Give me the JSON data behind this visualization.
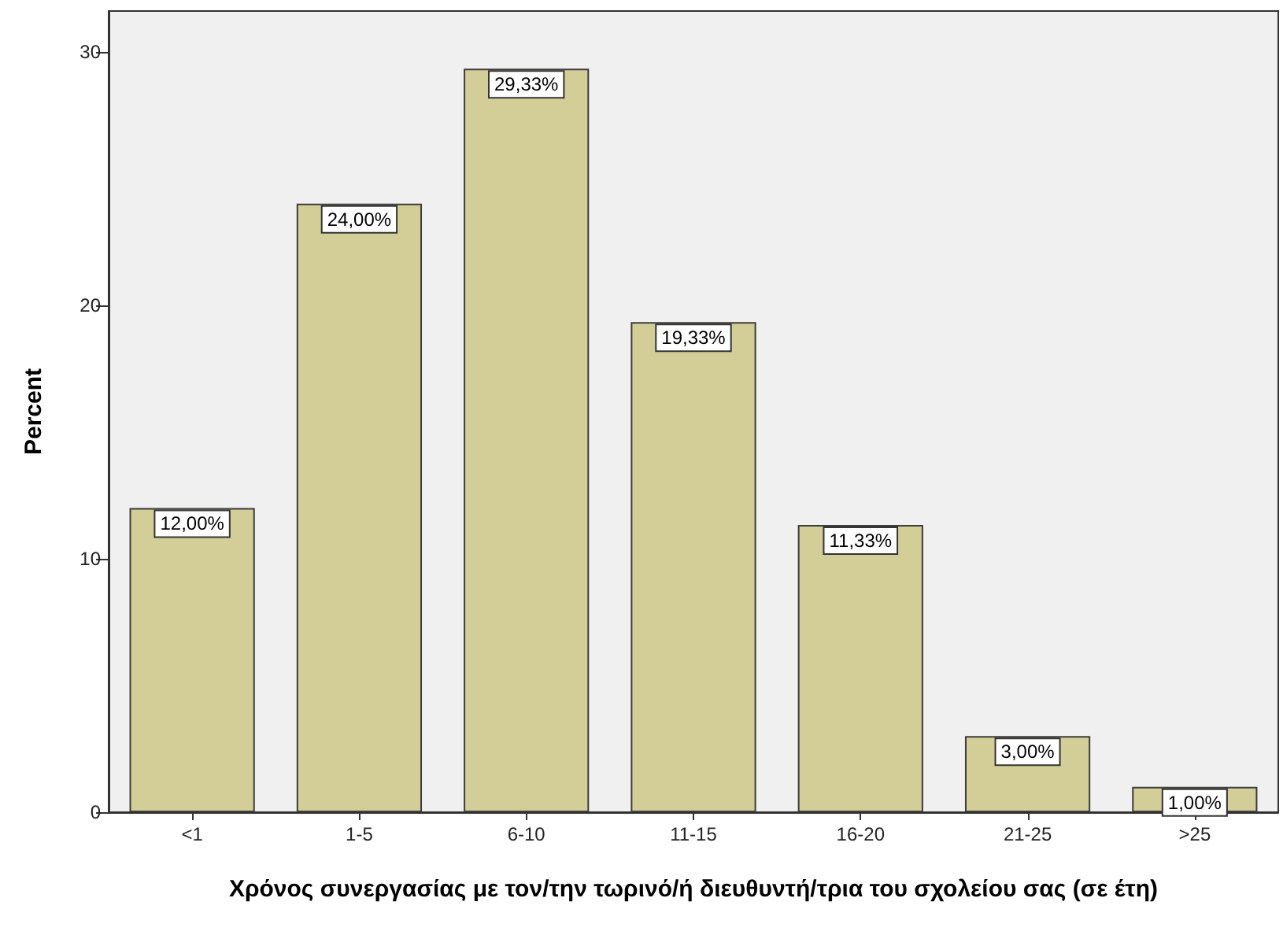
{
  "chart_data": {
    "type": "bar",
    "xlabel": "Χρόνος συνεργασίας με τον/την τωρινό/ή διευθυντή/τρια του σχολείου σας (σε έτη)",
    "ylabel": "Percent",
    "categories": [
      "<1",
      "1-5",
      "6-10",
      "11-15",
      "16-20",
      "21-25",
      ">25"
    ],
    "values": [
      12,
      24,
      29.33,
      19.33,
      11.33,
      3,
      1
    ],
    "value_labels": [
      "12,00%",
      "24,00%",
      "29,33%",
      "19,33%",
      "11,33%",
      "3,00%",
      "1,00%"
    ],
    "color": "#d3ce97",
    "ylim": [
      0,
      31.6
    ],
    "yticks": [
      0,
      10,
      20,
      30
    ],
    "grid": false
  }
}
